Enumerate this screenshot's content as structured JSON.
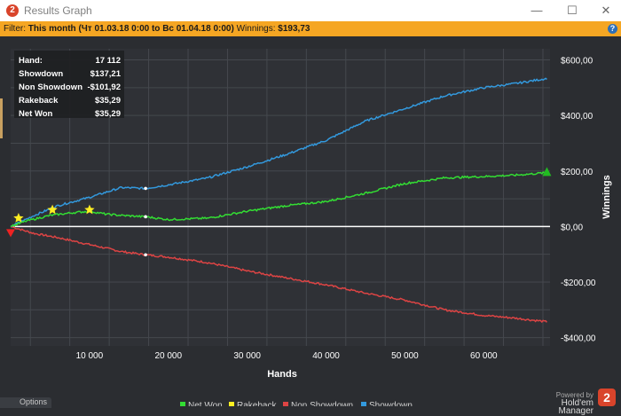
{
  "window": {
    "title": "Results Graph",
    "minimize_glyph": "—",
    "maximize_glyph": "☐",
    "close_glyph": "✕",
    "icon_glyph": "2"
  },
  "filter": {
    "label": "Filter:",
    "value": "This month (Чт 01.03.18 0:00 to Вс 01.04.18 0:00)",
    "winnings_label": "Winnings:",
    "winnings_value": "$193,73",
    "help_glyph": "?"
  },
  "stats_box": [
    {
      "label": "Hand:",
      "value": "17 112"
    },
    {
      "label": "Showdown",
      "value": "$137,21"
    },
    {
      "label": "Non Showdown",
      "value": "-$101,92"
    },
    {
      "label": "Rakeback",
      "value": "$35,29"
    },
    {
      "label": "Net Won",
      "value": "$35,29"
    }
  ],
  "footer": {
    "options_label": "Options",
    "powered_by": "Powered by",
    "brand": "Hold'em Manager",
    "logo_glyph": "2"
  },
  "colors": {
    "net_won": "#33dd33",
    "rakeback": "#ffee22",
    "non_showdown": "#dd4444",
    "showdown": "#3399dd"
  },
  "chart_data": {
    "type": "line",
    "xlabel": "Hands",
    "ylabel": "Winnings",
    "xlim": [
      0,
      68400
    ],
    "ylim": [
      -430,
      640
    ],
    "x_ticks": [
      10000,
      20000,
      30000,
      40000,
      50000,
      60000
    ],
    "x_tick_labels": [
      "10 000",
      "20 000",
      "30 000",
      "40 000",
      "50 000",
      "60 000"
    ],
    "y_ticks": [
      -400,
      -200,
      0,
      200,
      400,
      600
    ],
    "y_tick_labels": [
      "-$400,00",
      "-$200,00",
      "$0,00",
      "$200,00",
      "$400,00",
      "$600,00"
    ],
    "grid": true,
    "legend_position": "bottom",
    "series": [
      {
        "name": "Net Won",
        "color": "#33dd33",
        "x": [
          0,
          2000,
          5000,
          8000,
          10000,
          12000,
          14000,
          17112,
          20000,
          25000,
          30000,
          35000,
          40000,
          45000,
          50000,
          55000,
          60000,
          64000,
          68000
        ],
        "values": [
          0,
          20,
          40,
          50,
          55,
          45,
          40,
          35,
          25,
          30,
          55,
          75,
          90,
          120,
          155,
          175,
          180,
          185,
          193.73
        ]
      },
      {
        "name": "Rakeback",
        "color": "#ffee22",
        "x": [],
        "values": []
      },
      {
        "name": "Non Showdown",
        "color": "#dd4444",
        "x": [
          0,
          3000,
          6000,
          10000,
          14000,
          17112,
          20000,
          25000,
          30000,
          35000,
          40000,
          45000,
          50000,
          55000,
          60000,
          64000,
          68000
        ],
        "values": [
          0,
          -25,
          -40,
          -65,
          -90,
          -101.92,
          -110,
          -130,
          -160,
          -185,
          -210,
          -240,
          -265,
          -300,
          -320,
          -330,
          -343
        ]
      },
      {
        "name": "Showdown",
        "color": "#3399dd",
        "x": [
          0,
          3000,
          6000,
          10000,
          14000,
          17112,
          20000,
          25000,
          30000,
          35000,
          40000,
          45000,
          50000,
          55000,
          60000,
          64000,
          68000
        ],
        "values": [
          0,
          40,
          75,
          105,
          140,
          137.21,
          150,
          175,
          215,
          260,
          310,
          380,
          425,
          470,
          500,
          515,
          533
        ]
      }
    ],
    "markers": {
      "stars": [
        [
          1000,
          30
        ],
        [
          5300,
          60
        ],
        [
          10000,
          60
        ]
      ],
      "start_down": [
        0,
        0
      ],
      "end_up": [
        68000,
        195
      ]
    }
  }
}
